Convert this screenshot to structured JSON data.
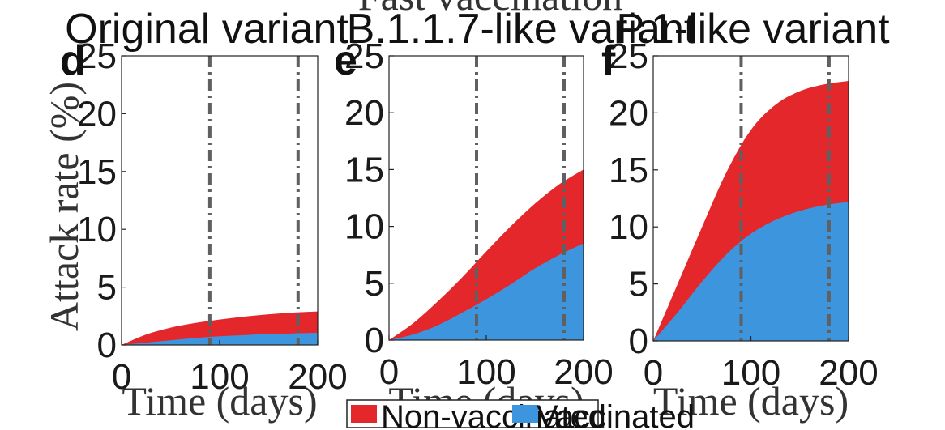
{
  "figure": {
    "suptitle": "Fast vaccination",
    "ylabel": "Attack rate (%)",
    "colors": {
      "non_vaccinated": "#e3272a",
      "vaccinated": "#3d95de",
      "vline": "#606060"
    },
    "legend": {
      "placement": "bottom-center",
      "items": [
        "Non-vaccinated",
        "Vaccinated"
      ]
    }
  },
  "chart_data": [
    {
      "type": "area",
      "panel": "d",
      "title": "Original variant",
      "xlabel": "Time (days)",
      "xlim": [
        0,
        200
      ],
      "ylim": [
        0,
        25
      ],
      "xticks": [
        "0",
        "100",
        "200"
      ],
      "yticks": [
        "0",
        "5",
        "10",
        "15",
        "20",
        "25"
      ],
      "vlines": [
        90,
        180
      ],
      "x": [
        0,
        25,
        50,
        75,
        100,
        125,
        150,
        175,
        200
      ],
      "series": [
        {
          "name": "Vaccinated",
          "values": [
            0,
            0.2,
            0.4,
            0.6,
            0.75,
            0.85,
            0.95,
            1.0,
            1.05
          ]
        },
        {
          "name": "Non-vaccinated",
          "values": [
            0,
            0.9,
            1.5,
            1.9,
            2.2,
            2.45,
            2.65,
            2.8,
            2.9
          ]
        }
      ]
    },
    {
      "type": "area",
      "panel": "e",
      "title": "B.1.1.7-like variant",
      "xlabel": "Time (days)",
      "xlim": [
        0,
        200
      ],
      "ylim": [
        0,
        25
      ],
      "xticks": [
        "0",
        "100",
        "200"
      ],
      "yticks": [
        "0",
        "5",
        "10",
        "15",
        "20",
        "25"
      ],
      "vlines": [
        90,
        180
      ],
      "x": [
        0,
        25,
        50,
        75,
        100,
        125,
        150,
        175,
        200
      ],
      "series": [
        {
          "name": "Vaccinated",
          "values": [
            0,
            0.5,
            1.3,
            2.4,
            3.6,
            4.9,
            6.3,
            7.5,
            8.5
          ]
        },
        {
          "name": "Non-vaccinated",
          "values": [
            0,
            1.5,
            3.4,
            5.5,
            7.8,
            10.0,
            12.0,
            13.7,
            15.0
          ]
        }
      ]
    },
    {
      "type": "area",
      "panel": "f",
      "title": "P.1-like variant",
      "xlabel": "Time (days)",
      "xlim": [
        0,
        200
      ],
      "ylim": [
        0,
        25
      ],
      "xticks": [
        "0",
        "100",
        "200"
      ],
      "yticks": [
        "0",
        "5",
        "10",
        "15",
        "20",
        "25"
      ],
      "vlines": [
        90,
        180
      ],
      "x": [
        0,
        25,
        50,
        75,
        100,
        125,
        150,
        175,
        200
      ],
      "series": [
        {
          "name": "Vaccinated",
          "values": [
            0,
            2.5,
            5.2,
            7.6,
            9.4,
            10.6,
            11.4,
            11.9,
            12.2
          ]
        },
        {
          "name": "Non-vaccinated",
          "values": [
            0,
            5.0,
            10.0,
            14.8,
            18.5,
            20.7,
            21.9,
            22.5,
            22.8
          ]
        }
      ]
    }
  ]
}
